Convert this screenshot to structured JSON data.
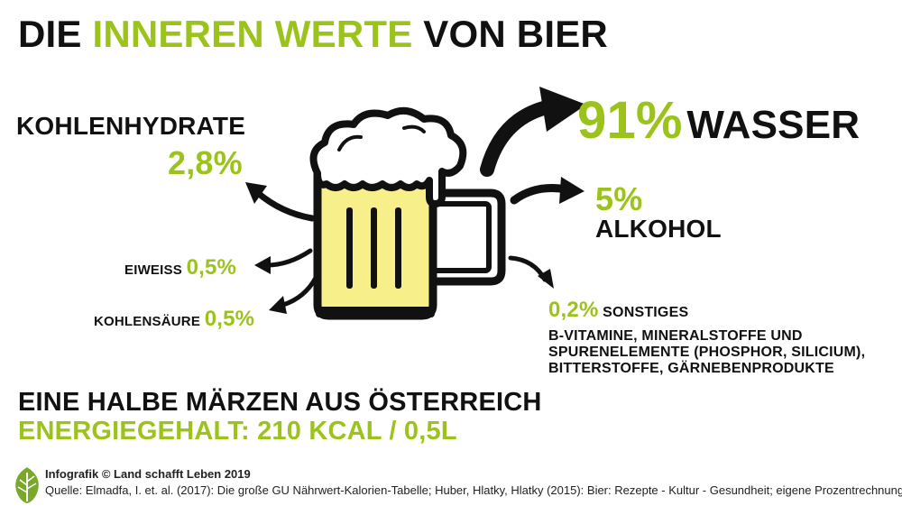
{
  "title": {
    "part1": "DIE ",
    "part2": "INNEREN WERTE",
    "part3": " VON BIER"
  },
  "kohlenhydrate": {
    "label": "KOHLENHYDRATE",
    "value": "2,8%"
  },
  "eiweiss": {
    "label": "EIWEISS",
    "value": "0,5%"
  },
  "kohlensaeure": {
    "label": "KOHLENSÄURE",
    "value": "0,5%"
  },
  "wasser": {
    "value": "91%",
    "label": "WASSER"
  },
  "alkohol": {
    "value": "5%",
    "label": "ALKOHOL"
  },
  "sonstiges": {
    "value": "0,2%",
    "label": "SONSTIGES",
    "description": "B-VITAMINE, MINERALSTOFFE UND SPURENELEMENTE (PHOSPHOR, SILICIUM), BITTERSTOFFE, GÄRNEBENPRODUKTE"
  },
  "summary": {
    "line1": "EINE HALBE MÄRZEN AUS ÖSTERREICH",
    "line2": "ENERGIEGEHALT: 210 KCAL / 0,5L"
  },
  "footer": {
    "credit": "Infografik © Land schafft Leben 2019",
    "source": "Quelle: Elmadfa, I. et. al. (2017): Die große GU Nährwert-Kalorien-Tabelle; Huber, Hlatky, Hlatky (2015): Bier: Rezepte - Kultur - Gesundheit; eigene Prozentrechnung"
  },
  "colors": {
    "accent": "#9bc31c",
    "text": "#111111",
    "beer": "#f7f08a",
    "logo": "#7aa82a"
  },
  "icons": [
    "beer-mug-icon",
    "leaf-logo-icon",
    "arrow-icon"
  ]
}
